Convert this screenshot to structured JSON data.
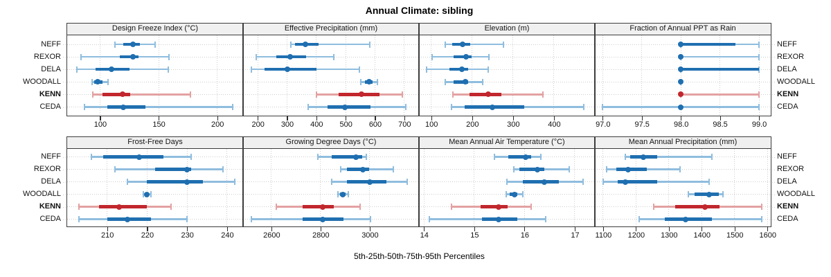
{
  "title": "Annual Climate: sibling",
  "xlabel": "5th-25th-50th-75th-95th Percentiles",
  "sites": [
    "NEFF",
    "REXOR",
    "DELA",
    "WOODALL",
    "KENN",
    "CEDA"
  ],
  "highlight_site": "KENN",
  "percentiles": [
    5,
    25,
    50,
    75,
    95
  ],
  "colors": {
    "series_blue": "#1F6FB0",
    "series_blue_light": "#8FBDDE",
    "highlight_red": "#C1272D",
    "highlight_red_light": "#E3A1A1",
    "header_bg": "#F0F0F0",
    "panel_border": "#3C3C3C",
    "gridline": "#CCCCCC",
    "tick_mark": "#2B2B2B"
  },
  "chart_data": [
    {
      "type": "dotplot-intervals",
      "title": "Design Freeze Index (°C)",
      "xlim": [
        72,
        222
      ],
      "ticks": [
        100,
        150,
        200
      ],
      "tick_labels": [
        "100",
        "150",
        "200"
      ],
      "series": [
        {
          "name": "NEFF",
          "values": [
            113,
            120,
            128,
            134,
            147
          ]
        },
        {
          "name": "REXOR",
          "values": [
            84,
            117,
            128,
            133,
            159
          ]
        },
        {
          "name": "DELA",
          "values": [
            80,
            96,
            110,
            125,
            158
          ]
        },
        {
          "name": "WOODALL",
          "values": [
            93,
            95,
            98,
            102,
            107
          ]
        },
        {
          "name": "KENN",
          "values": [
            94,
            102,
            119,
            126,
            177
          ]
        },
        {
          "name": "CEDA",
          "values": [
            87,
            106,
            120,
            139,
            213
          ]
        }
      ]
    },
    {
      "type": "dotplot-intervals",
      "title": "Effective Precipitation (mm)",
      "xlim": [
        150,
        750
      ],
      "ticks": [
        200,
        300,
        400,
        500,
        600,
        700
      ],
      "tick_labels": [
        "200",
        "300",
        "400",
        "500",
        "600",
        "700"
      ],
      "series": [
        {
          "name": "NEFF",
          "values": [
            312,
            326,
            363,
            408,
            582
          ]
        },
        {
          "name": "REXOR",
          "values": [
            194,
            263,
            311,
            365,
            459
          ]
        },
        {
          "name": "DELA",
          "values": [
            179,
            224,
            300,
            400,
            547
          ]
        },
        {
          "name": "WOODALL",
          "values": [
            551,
            565,
            580,
            592,
            609
          ]
        },
        {
          "name": "KENN",
          "values": [
            400,
            475,
            555,
            616,
            694
          ]
        },
        {
          "name": "CEDA",
          "values": [
            371,
            439,
            498,
            584,
            706
          ]
        }
      ]
    },
    {
      "type": "dotplot-intervals",
      "title": "Elevation (m)",
      "xlim": [
        70,
        500
      ],
      "ticks": [
        100,
        200,
        300,
        400
      ],
      "tick_labels": [
        "100",
        "200",
        "300",
        "400"
      ],
      "series": [
        {
          "name": "NEFF",
          "values": [
            134,
            152,
            177,
            196,
            277
          ]
        },
        {
          "name": "REXOR",
          "values": [
            102,
            154,
            185,
            198,
            241
          ]
        },
        {
          "name": "DELA",
          "values": [
            88,
            144,
            175,
            190,
            239
          ]
        },
        {
          "name": "WOODALL",
          "values": [
            134,
            155,
            183,
            190,
            226
          ]
        },
        {
          "name": "KENN",
          "values": [
            153,
            194,
            240,
            272,
            373
          ]
        },
        {
          "name": "CEDA",
          "values": [
            149,
            181,
            250,
            327,
            473
          ]
        }
      ]
    },
    {
      "type": "dotplot-intervals",
      "title": "Fraction of Annual PPT as Rain",
      "xlim": [
        96.9,
        99.15
      ],
      "ticks": [
        97.0,
        97.5,
        98.0,
        98.5,
        99.0
      ],
      "tick_labels": [
        "97.0",
        "97.5",
        "98.0",
        "98.5",
        "99.0"
      ],
      "series": [
        {
          "name": "NEFF",
          "values": [
            98,
            98,
            98,
            98.7,
            99
          ]
        },
        {
          "name": "REXOR",
          "values": [
            98,
            98,
            98,
            98,
            99
          ]
        },
        {
          "name": "DELA",
          "values": [
            98,
            98,
            98,
            99,
            99
          ]
        },
        {
          "name": "WOODALL",
          "values": [
            98,
            98,
            98,
            98,
            98
          ]
        },
        {
          "name": "KENN",
          "values": [
            98,
            98,
            98,
            98,
            99
          ]
        },
        {
          "name": "CEDA",
          "values": [
            97,
            98,
            98,
            98,
            99
          ]
        }
      ]
    },
    {
      "type": "dotplot-intervals",
      "title": "Frost-Free Days",
      "xlim": [
        200,
        244
      ],
      "ticks": [
        210,
        220,
        230,
        240
      ],
      "tick_labels": [
        "210",
        "220",
        "230",
        "240"
      ],
      "series": [
        {
          "name": "NEFF",
          "values": [
            206,
            209,
            218,
            224,
            231
          ]
        },
        {
          "name": "REXOR",
          "values": [
            212,
            222,
            230,
            231,
            239
          ]
        },
        {
          "name": "DELA",
          "values": [
            215,
            220,
            230,
            234,
            242
          ]
        },
        {
          "name": "WOODALL",
          "values": [
            219,
            219.5,
            220,
            220.5,
            221
          ]
        },
        {
          "name": "KENN",
          "values": [
            203,
            208,
            213,
            220,
            226
          ]
        },
        {
          "name": "CEDA",
          "values": [
            203,
            210,
            215,
            221,
            230
          ]
        }
      ]
    },
    {
      "type": "dotplot-intervals",
      "title": "Growing Degree Days (°C)",
      "xlim": [
        2485,
        3200
      ],
      "ticks": [
        2600,
        2800,
        3000
      ],
      "tick_labels": [
        "2600",
        "2800",
        "3000"
      ],
      "series": [
        {
          "name": "NEFF",
          "values": [
            2790,
            2845,
            2944,
            2968,
            2985
          ]
        },
        {
          "name": "REXOR",
          "values": [
            2883,
            2907,
            2973,
            2996,
            3095
          ]
        },
        {
          "name": "DELA",
          "values": [
            2845,
            2906,
            3001,
            3067,
            3152
          ]
        },
        {
          "name": "WOODALL",
          "values": [
            2870,
            2878,
            2890,
            2902,
            2914
          ]
        },
        {
          "name": "KENN",
          "values": [
            2621,
            2727,
            2809,
            2855,
            2960
          ]
        },
        {
          "name": "CEDA",
          "values": [
            2518,
            2727,
            2809,
            2892,
            3003
          ]
        }
      ]
    },
    {
      "type": "dotplot-intervals",
      "title": "Mean Annual Air Temperature (°C)",
      "xlim": [
        13.9,
        17.4
      ],
      "ticks": [
        14,
        15,
        16,
        17
      ],
      "tick_labels": [
        "14",
        "15",
        "16",
        "17"
      ],
      "series": [
        {
          "name": "NEFF",
          "values": [
            15.4,
            15.68,
            16.02,
            16.13,
            16.32
          ]
        },
        {
          "name": "REXOR",
          "values": [
            15.79,
            15.9,
            16.25,
            16.39,
            16.89
          ]
        },
        {
          "name": "DELA",
          "values": [
            15.65,
            15.97,
            16.4,
            16.68,
            17.17
          ]
        },
        {
          "name": "WOODALL",
          "values": [
            15.64,
            15.7,
            15.8,
            15.86,
            15.97
          ]
        },
        {
          "name": "KENN",
          "values": [
            14.55,
            15.12,
            15.48,
            15.67,
            16.13
          ]
        },
        {
          "name": "CEDA",
          "values": [
            14.1,
            15.15,
            15.48,
            15.86,
            16.42
          ]
        }
      ]
    },
    {
      "type": "dotplot-intervals",
      "title": "Mean Annual Precipitation (mm)",
      "xlim": [
        1075,
        1610
      ],
      "ticks": [
        1100,
        1200,
        1300,
        1400,
        1500,
        1600
      ],
      "tick_labels": [
        "1100",
        "1200",
        "1300",
        "1400",
        "1500",
        "1600"
      ],
      "series": [
        {
          "name": "NEFF",
          "values": [
            1167,
            1183,
            1223,
            1265,
            1431
          ]
        },
        {
          "name": "REXOR",
          "values": [
            1110,
            1140,
            1176,
            1233,
            1335
          ]
        },
        {
          "name": "DELA",
          "values": [
            1100,
            1144,
            1167,
            1265,
            1423
          ]
        },
        {
          "name": "WOODALL",
          "values": [
            1360,
            1378,
            1422,
            1452,
            1465
          ]
        },
        {
          "name": "KENN",
          "values": [
            1255,
            1320,
            1410,
            1455,
            1582
          ]
        },
        {
          "name": "CEDA",
          "values": [
            1210,
            1288,
            1350,
            1430,
            1582
          ]
        }
      ]
    }
  ]
}
